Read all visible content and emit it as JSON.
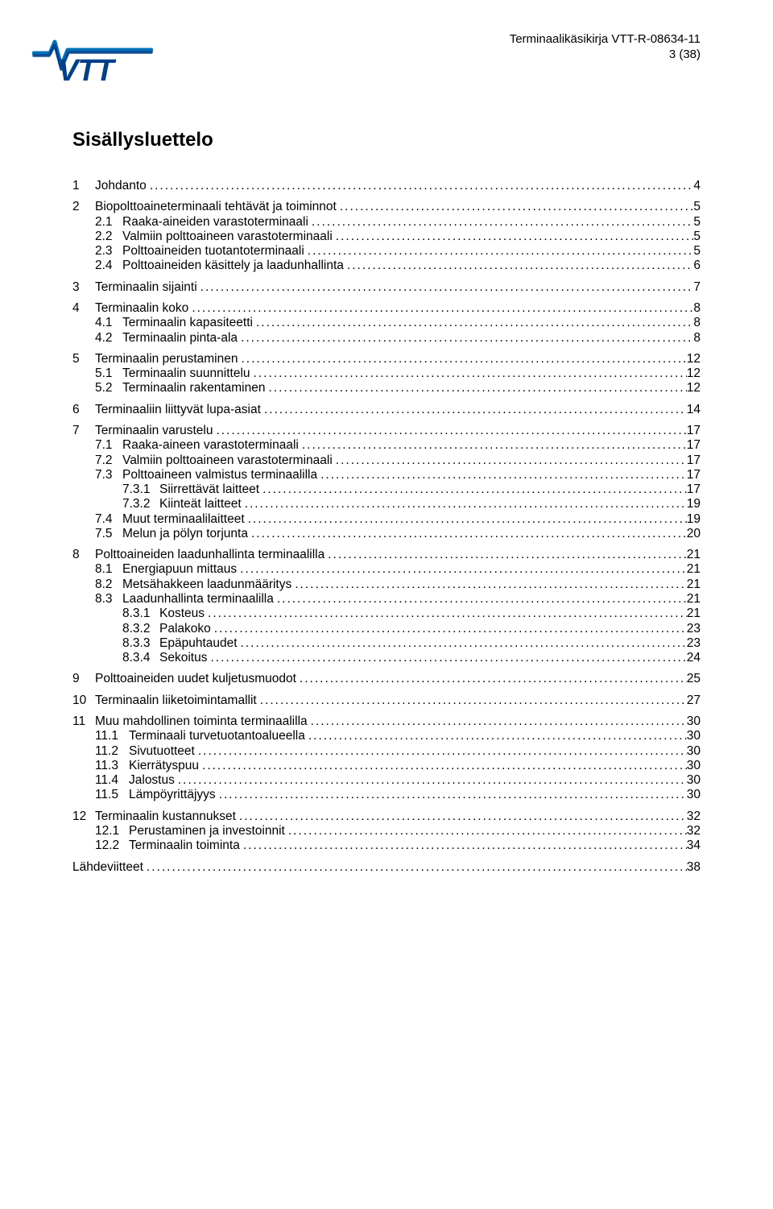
{
  "header": {
    "line1": "Terminaalikäsikirja VTT-R-08634-11",
    "line2": "3 (38)"
  },
  "logo": {
    "text": "VTT",
    "text_color": "#003f8a",
    "wave_color_top": "#0072bc",
    "wave_color_bottom": "#003f8a"
  },
  "title": "Sisällysluettelo",
  "toc": [
    {
      "level": 0,
      "num": "1",
      "label": "Johdanto",
      "page": "4",
      "gap": true
    },
    {
      "level": 0,
      "num": "2",
      "label": "Biopolttoaineterminaali tehtävät ja toiminnot",
      "page": "5",
      "gap": true
    },
    {
      "level": 1,
      "num": "2.1",
      "label": "Raaka-aineiden varastoterminaali",
      "page": "5"
    },
    {
      "level": 1,
      "num": "2.2",
      "label": "Valmiin polttoaineen varastoterminaali",
      "page": "5"
    },
    {
      "level": 1,
      "num": "2.3",
      "label": "Polttoaineiden tuotantoterminaali",
      "page": "5"
    },
    {
      "level": 1,
      "num": "2.4",
      "label": "Polttoaineiden käsittely ja laadunhallinta",
      "page": "6"
    },
    {
      "level": 0,
      "num": "3",
      "label": "Terminaalin sijainti",
      "page": "7",
      "gap": true
    },
    {
      "level": 0,
      "num": "4",
      "label": "Terminaalin koko",
      "page": "8",
      "gap": true
    },
    {
      "level": 1,
      "num": "4.1",
      "label": "Terminaalin kapasiteetti",
      "page": "8"
    },
    {
      "level": 1,
      "num": "4.2",
      "label": "Terminaalin pinta-ala",
      "page": "8"
    },
    {
      "level": 0,
      "num": "5",
      "label": "Terminaalin perustaminen",
      "page": "12",
      "gap": true
    },
    {
      "level": 1,
      "num": "5.1",
      "label": "Terminaalin suunnittelu",
      "page": "12"
    },
    {
      "level": 1,
      "num": "5.2",
      "label": "Terminaalin rakentaminen",
      "page": "12"
    },
    {
      "level": 0,
      "num": "6",
      "label": "Terminaaliin liittyvät lupa-asiat",
      "page": "14",
      "gap": true
    },
    {
      "level": 0,
      "num": "7",
      "label": "Terminaalin varustelu",
      "page": "17",
      "gap": true
    },
    {
      "level": 1,
      "num": "7.1",
      "label": "Raaka-aineen varastoterminaali",
      "page": "17"
    },
    {
      "level": 1,
      "num": "7.2",
      "label": "Valmiin polttoaineen varastoterminaali",
      "page": "17"
    },
    {
      "level": 1,
      "num": "7.3",
      "label": "Polttoaineen valmistus terminaalilla",
      "page": "17"
    },
    {
      "level": 2,
      "num": "7.3.1",
      "label": "Siirrettävät laitteet",
      "page": "17"
    },
    {
      "level": 2,
      "num": "7.3.2",
      "label": "Kiinteät laitteet",
      "page": "19"
    },
    {
      "level": 1,
      "num": "7.4",
      "label": "Muut terminaalilaitteet",
      "page": "19"
    },
    {
      "level": 1,
      "num": "7.5",
      "label": "Melun ja pölyn torjunta",
      "page": "20"
    },
    {
      "level": 0,
      "num": "8",
      "label": "Polttoaineiden laadunhallinta terminaalilla",
      "page": "21",
      "gap": true
    },
    {
      "level": 1,
      "num": "8.1",
      "label": "Energiapuun mittaus",
      "page": "21"
    },
    {
      "level": 1,
      "num": "8.2",
      "label": "Metsähakkeen laadunmääritys",
      "page": "21"
    },
    {
      "level": 1,
      "num": "8.3",
      "label": "Laadunhallinta terminaalilla",
      "page": "21"
    },
    {
      "level": 2,
      "num": "8.3.1",
      "label": "Kosteus",
      "page": "21"
    },
    {
      "level": 2,
      "num": "8.3.2",
      "label": "Palakoko",
      "page": "23"
    },
    {
      "level": 2,
      "num": "8.3.3",
      "label": "Epäpuhtaudet",
      "page": "23"
    },
    {
      "level": 2,
      "num": "8.3.4",
      "label": "Sekoitus",
      "page": "24"
    },
    {
      "level": 0,
      "num": "9",
      "label": "Polttoaineiden uudet kuljetusmuodot",
      "page": "25",
      "gap": true
    },
    {
      "level": 0,
      "num": "10",
      "label": "Terminaalin liiketoimintamallit",
      "page": "27",
      "wide": true,
      "gap": true
    },
    {
      "level": 0,
      "num": "11",
      "label": "Muu mahdollinen toiminta terminaalilla",
      "page": "30",
      "wide": true,
      "gap": true
    },
    {
      "level": 1,
      "num": "11.1",
      "label": "Terminaali turvetuotantoalueella",
      "page": "30",
      "cond": true
    },
    {
      "level": 1,
      "num": "11.2",
      "label": "Sivutuotteet",
      "page": "30",
      "cond": true
    },
    {
      "level": 1,
      "num": "11.3",
      "label": "Kierrätyspuu",
      "page": "30",
      "cond": true
    },
    {
      "level": 1,
      "num": "11.4",
      "label": "Jalostus",
      "page": "30",
      "cond": true
    },
    {
      "level": 1,
      "num": "11.5",
      "label": "Lämpöyrittäjyys",
      "page": "30",
      "cond": true
    },
    {
      "level": 0,
      "num": "12",
      "label": "Terminaalin kustannukset",
      "page": "32",
      "wide": true,
      "gap": true
    },
    {
      "level": 1,
      "num": "12.1",
      "label": "Perustaminen ja investoinnit",
      "page": "32",
      "cond": true
    },
    {
      "level": 1,
      "num": "12.2",
      "label": "Terminaalin toiminta",
      "page": "34",
      "cond": true
    },
    {
      "level": 0,
      "num": "",
      "label": "Lähdeviitteet",
      "page": "38",
      "noindent": true,
      "gap": true
    }
  ]
}
